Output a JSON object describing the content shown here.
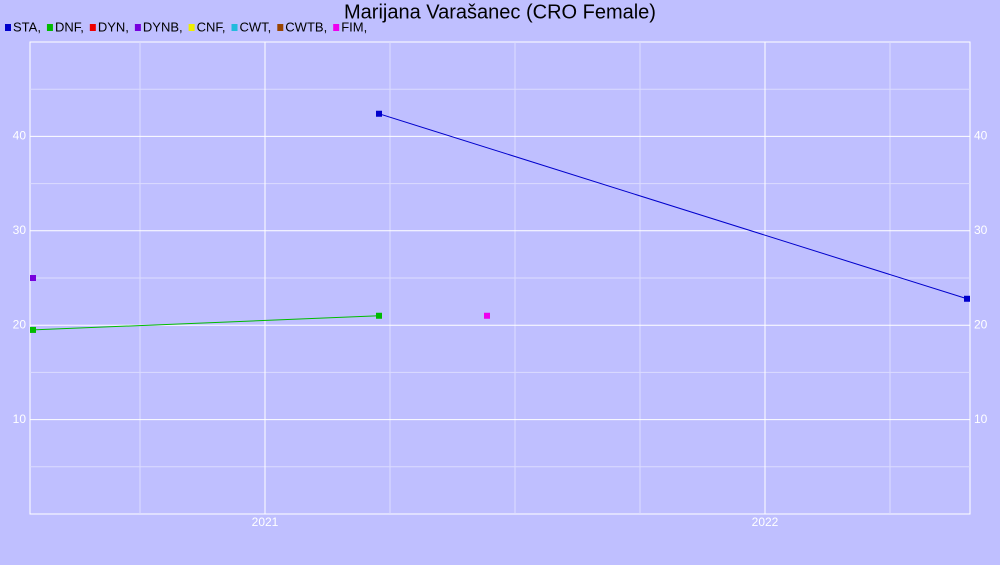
{
  "chart_data": {
    "type": "line",
    "title": "Marijana Varašanec (CRO Female)",
    "xlim": [
      2020.53,
      2022.41
    ],
    "xticks": [
      2021,
      2022
    ],
    "xminorticks": [
      2020.75,
      2021.25,
      2021.5,
      2021.75,
      2022.25
    ],
    "ylim": [
      0,
      50
    ],
    "yticks": [
      10,
      20,
      30,
      40
    ],
    "yminorticks": [
      5,
      15,
      25,
      35,
      45
    ],
    "grid": true,
    "series": [
      {
        "name": "STA,",
        "color": "#0000cc",
        "x": [
          2021.228,
          2022.404
        ],
        "values": [
          42.4,
          22.8
        ]
      },
      {
        "name": "DNF,",
        "color": "#00bb00",
        "x": [
          2020.536,
          2021.228
        ],
        "values": [
          19.5,
          21.0
        ]
      },
      {
        "name": "DYN,",
        "color": "#ee0000",
        "x": [],
        "values": []
      },
      {
        "name": "DYNB,",
        "color": "#7700dd",
        "x": [
          2020.536
        ],
        "values": [
          25.0
        ]
      },
      {
        "name": "CNF,",
        "color": "#eeee00",
        "x": [],
        "values": []
      },
      {
        "name": "CWT,",
        "color": "#22bbdd",
        "x": [],
        "values": []
      },
      {
        "name": "CWTB,",
        "color": "#994400",
        "x": [],
        "values": []
      },
      {
        "name": "FIM,",
        "color": "#ee00ee",
        "x": [
          2021.444
        ],
        "values": [
          21.0
        ]
      }
    ]
  }
}
